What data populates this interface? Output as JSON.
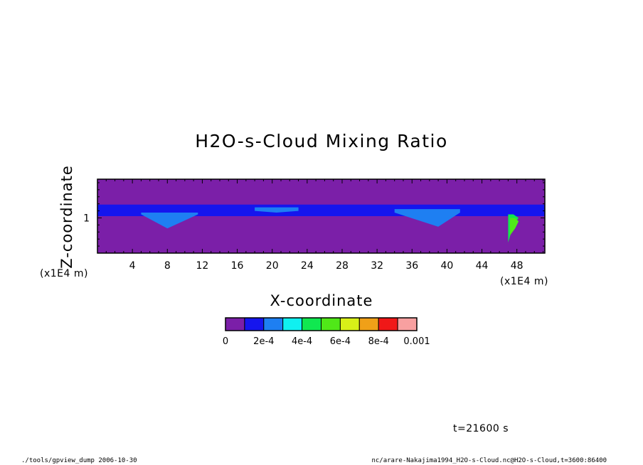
{
  "chart_data": {
    "type": "heatmap",
    "title": "H2O-s-Cloud Mixing Ratio",
    "xlabel": "X-coordinate",
    "ylabel": "Z-coordinate",
    "x_unit": "(x1E4 m)",
    "y_unit": "(x1E4 m)",
    "xlim": [
      0,
      51.2
    ],
    "ylim": [
      0,
      2.1
    ],
    "x_ticks": [
      4,
      8,
      12,
      16,
      20,
      24,
      28,
      32,
      36,
      40,
      44,
      48
    ],
    "y_ticks": [
      1
    ],
    "colorbar": {
      "levels": [
        0,
        0.0001,
        0.0002,
        0.0003,
        0.0004,
        0.0005,
        0.0006,
        0.0007,
        0.0008,
        0.0009,
        0.001
      ],
      "labels": [
        {
          "value": 0,
          "text": "0"
        },
        {
          "value": 0.0002,
          "text": "2e-4"
        },
        {
          "value": 0.0004,
          "text": "4e-4"
        },
        {
          "value": 0.0006,
          "text": "6e-4"
        },
        {
          "value": 0.0008,
          "text": "8e-4"
        },
        {
          "value": 0.001,
          "text": "0.001"
        }
      ],
      "colors": [
        "#7b1fa8",
        "#1515ee",
        "#1e7ff2",
        "#10f0f0",
        "#10e850",
        "#50e818",
        "#d8f018",
        "#f0a018",
        "#f01818",
        "#f8a0a0"
      ]
    },
    "cloud_layers": [
      {
        "level": 1,
        "x": [
          0,
          51.2
        ],
        "z_bottom": [
          1.05,
          1.05
        ],
        "z_top": [
          1.38,
          1.38
        ]
      },
      {
        "level": 2,
        "x": [
          5.0,
          8.0,
          11.5
        ],
        "z_bottom": [
          1.1,
          0.7,
          1.1
        ],
        "z_top": [
          1.15,
          1.15,
          1.15
        ]
      },
      {
        "level": 2,
        "x": [
          18.0,
          20.5,
          23.0
        ],
        "z_bottom": [
          1.2,
          1.15,
          1.2
        ],
        "z_top": [
          1.3,
          1.3,
          1.3
        ]
      },
      {
        "level": 2,
        "x": [
          34.0,
          39.0,
          41.5
        ],
        "z_bottom": [
          1.15,
          0.75,
          1.15
        ],
        "z_top": [
          1.25,
          1.25,
          1.25
        ]
      },
      {
        "level": 4,
        "x": [
          47.0,
          47.6,
          48.2
        ],
        "z_bottom": [
          0.3,
          0.8,
          1.0
        ],
        "z_top": [
          1.1,
          1.1,
          1.0
        ]
      },
      {
        "level": 5,
        "x": [
          47.2,
          47.8,
          48.2
        ],
        "z_bottom": [
          0.5,
          0.7,
          0.9
        ],
        "z_top": [
          1.0,
          1.0,
          0.9
        ]
      }
    ]
  },
  "time_label": "t=21600 s",
  "footer_left": "./tools/gpview_dump  2006-10-30",
  "footer_right": "nc/arare-Nakajima1994_H2O-s-Cloud.nc@H2O-s-Cloud,t=3600:86400"
}
